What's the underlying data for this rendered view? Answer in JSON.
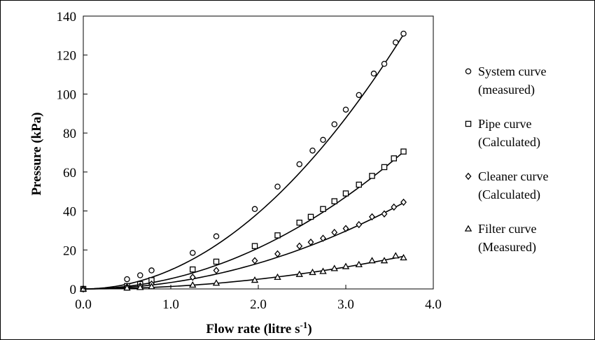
{
  "chart_data": {
    "type": "scatter",
    "xlabel": "Flow rate (litre s",
    "xlabel_sup": "-1",
    "xlabel_end": ")",
    "ylabel": "Pressure (kPa)",
    "xlim": [
      0.0,
      4.0
    ],
    "ylim": [
      0,
      140
    ],
    "x_ticks": [
      "0.0",
      "1.0",
      "2.0",
      "3.0",
      "4.0"
    ],
    "y_ticks": [
      "0",
      "20",
      "40",
      "60",
      "80",
      "100",
      "120",
      "140"
    ],
    "grid": false,
    "legend_position": "right",
    "series": [
      {
        "name_line1": "System curve",
        "name_line2": "(measured)",
        "marker": "circle",
        "fit_coefficient": 9.75,
        "points": [
          [
            0.0,
            0
          ],
          [
            0.5,
            5
          ],
          [
            0.65,
            7
          ],
          [
            0.78,
            9.5
          ],
          [
            1.25,
            18.5
          ],
          [
            1.52,
            27
          ],
          [
            1.96,
            41
          ],
          [
            2.22,
            52.5
          ],
          [
            2.47,
            64
          ],
          [
            2.62,
            71
          ],
          [
            2.74,
            76.5
          ],
          [
            2.87,
            84.5
          ],
          [
            3.0,
            92
          ],
          [
            3.15,
            99.5
          ],
          [
            3.32,
            110.5
          ],
          [
            3.44,
            115.5
          ],
          [
            3.57,
            126.5
          ],
          [
            3.66,
            131
          ]
        ]
      },
      {
        "name_line1": "Pipe curve",
        "name_line2": "(Calculated)",
        "marker": "square",
        "fit_coefficient": 5.25,
        "points": [
          [
            0.0,
            0
          ],
          [
            0.5,
            1.5
          ],
          [
            0.65,
            2.5
          ],
          [
            0.78,
            4.5
          ],
          [
            1.25,
            10
          ],
          [
            1.52,
            14
          ],
          [
            1.96,
            22
          ],
          [
            2.22,
            27.5
          ],
          [
            2.47,
            34
          ],
          [
            2.6,
            37
          ],
          [
            2.74,
            41
          ],
          [
            2.87,
            45
          ],
          [
            3.0,
            49
          ],
          [
            3.15,
            53.5
          ],
          [
            3.3,
            58
          ],
          [
            3.44,
            62.5
          ],
          [
            3.55,
            67
          ],
          [
            3.66,
            70.5
          ]
        ]
      },
      {
        "name_line1": "Cleaner curve",
        "name_line2": "(Calculated)",
        "marker": "diamond",
        "fit_coefficient": 3.3,
        "points": [
          [
            0.0,
            0
          ],
          [
            0.5,
            1
          ],
          [
            0.65,
            1.5
          ],
          [
            0.78,
            2.5
          ],
          [
            1.25,
            6
          ],
          [
            1.52,
            9.5
          ],
          [
            1.96,
            14.5
          ],
          [
            2.22,
            18
          ],
          [
            2.47,
            22
          ],
          [
            2.6,
            24
          ],
          [
            2.74,
            26
          ],
          [
            2.87,
            29
          ],
          [
            3.0,
            31
          ],
          [
            3.15,
            33
          ],
          [
            3.3,
            37
          ],
          [
            3.44,
            38.5
          ],
          [
            3.55,
            42
          ],
          [
            3.66,
            44.5
          ]
        ]
      },
      {
        "name_line1": "Filter curve",
        "name_line2": "(Measured)",
        "marker": "triangle",
        "fit_coefficient": 1.25,
        "points": [
          [
            0.0,
            0
          ],
          [
            0.5,
            0.5
          ],
          [
            0.65,
            0.8
          ],
          [
            0.78,
            1.2
          ],
          [
            1.25,
            2
          ],
          [
            1.52,
            3
          ],
          [
            1.96,
            4.5
          ],
          [
            2.22,
            6
          ],
          [
            2.47,
            7.5
          ],
          [
            2.62,
            8.5
          ],
          [
            2.74,
            9
          ],
          [
            2.87,
            10.5
          ],
          [
            3.0,
            11.5
          ],
          [
            3.15,
            12.5
          ],
          [
            3.3,
            14.5
          ],
          [
            3.44,
            14.5
          ],
          [
            3.57,
            17
          ],
          [
            3.66,
            16
          ]
        ]
      }
    ]
  }
}
